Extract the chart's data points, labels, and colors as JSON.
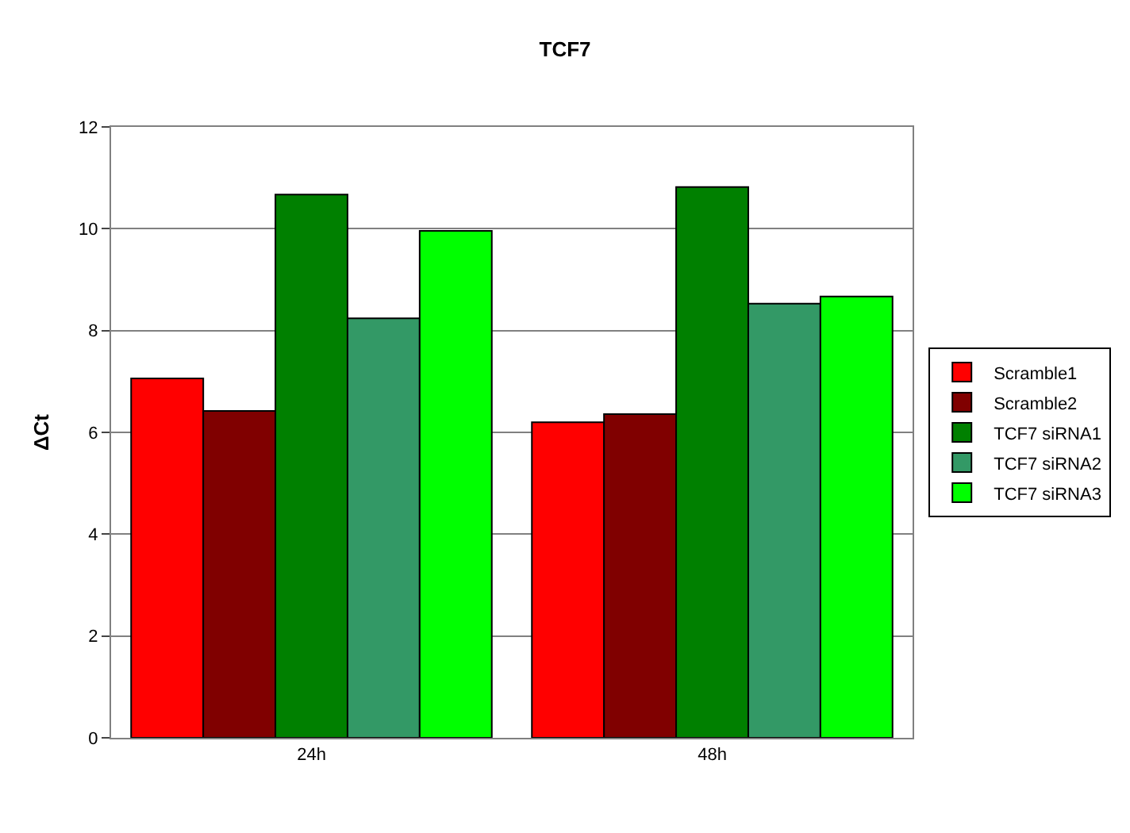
{
  "chart_data": {
    "type": "bar",
    "title": "TCF7",
    "ylabel": "ΔCt",
    "categories": [
      "24h",
      "48h"
    ],
    "series": [
      {
        "name": "Scramble1",
        "color": "#ff0000",
        "values": [
          7.06,
          6.2
        ]
      },
      {
        "name": "Scramble2",
        "color": "#800000",
        "values": [
          6.42,
          6.36
        ]
      },
      {
        "name": "TCF7 siRNA1",
        "color": "#008000",
        "values": [
          10.67,
          10.82
        ]
      },
      {
        "name": "TCF7 siRNA2",
        "color": "#339966",
        "values": [
          8.24,
          8.53
        ]
      },
      {
        "name": "TCF7 siRNA3",
        "color": "#00ff00",
        "values": [
          9.96,
          8.67
        ]
      }
    ],
    "ylim": [
      0,
      12
    ],
    "yticks": [
      0,
      2,
      4,
      6,
      8,
      10,
      12
    ],
    "grid": "y",
    "legend": "right"
  }
}
